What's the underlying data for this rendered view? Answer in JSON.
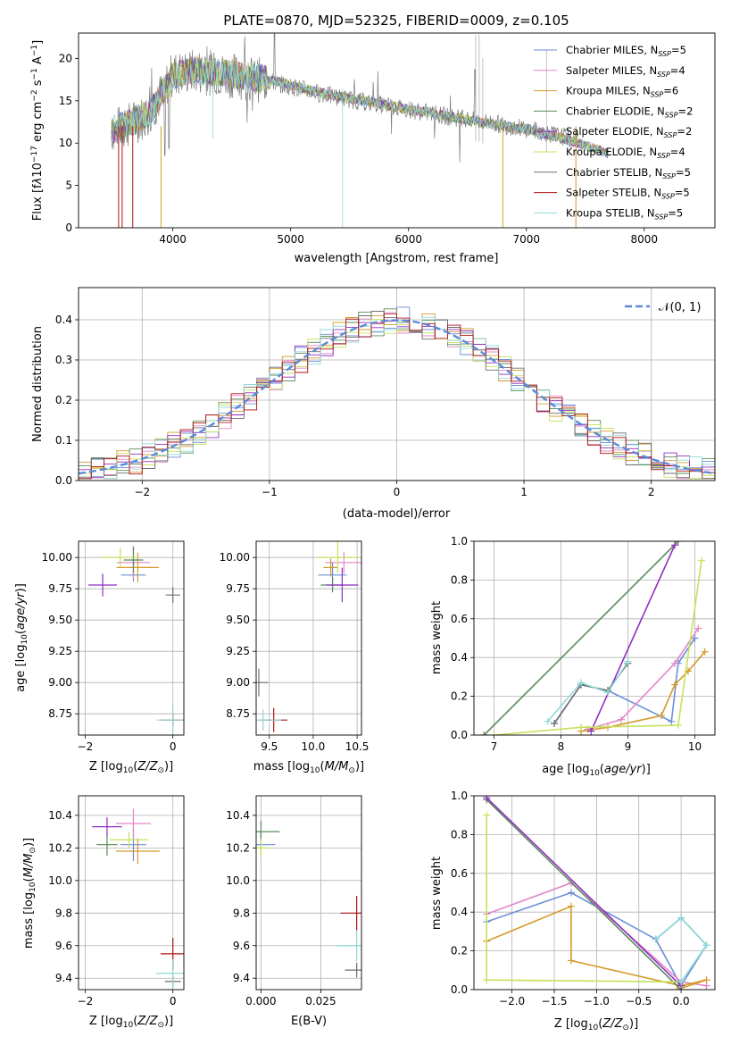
{
  "figure_title": "PLATE=0870, MJD=52325, FIBERID=0009, z=0.105",
  "colors": [
    "#6a8fd8",
    "#e086c8",
    "#d49a2a",
    "#5a8a5a",
    "#8e2fc0",
    "#c5e15a",
    "#6e6e6e",
    "#b01010",
    "#8fd8d8"
  ],
  "chart_data": [
    {
      "type": "line",
      "title": "PLATE=0870, MJD=52325, FIBERID=0009, z=0.105",
      "xlabel": "wavelength [Angstrom, rest frame]",
      "ylabel": "Flux [f_λ 10^-17 erg cm^-2 s^-1 A^-1]",
      "xlim": [
        3200,
        8600
      ],
      "ylim": [
        0,
        23
      ],
      "xticks": [
        "4000",
        "5000",
        "6000",
        "7000",
        "8000"
      ],
      "yticks": [
        "0",
        "5",
        "10",
        "15",
        "20"
      ],
      "legend_position": "upper-right",
      "legend": [
        {
          "name": "Chabrier MILES",
          "nssp": "5"
        },
        {
          "name": "Salpeter MILES",
          "nssp": "4"
        },
        {
          "name": "Kroupa MILES",
          "nssp": "6"
        },
        {
          "name": "Chabrier ELODIE",
          "nssp": "2"
        },
        {
          "name": "Salpeter ELODIE",
          "nssp": "2"
        },
        {
          "name": "Kroupa ELODIE",
          "nssp": "4"
        },
        {
          "name": "Chabrier STELIB",
          "nssp": "5"
        },
        {
          "name": "Salpeter STELIB",
          "nssp": "5"
        },
        {
          "name": "Kroupa STELIB",
          "nssp": "5"
        }
      ],
      "model_continuum": {
        "x": [
          3480,
          3600,
          3800,
          4000,
          4200,
          4500,
          4800,
          5000,
          5300,
          5600,
          6000,
          6300,
          6600,
          7000,
          7300,
          7700
        ],
        "y": [
          11.5,
          12.2,
          13.5,
          18.0,
          18.6,
          18.2,
          17.5,
          16.8,
          15.8,
          15.0,
          14.0,
          13.3,
          12.5,
          11.6,
          10.6,
          8.8
        ]
      },
      "observed_continuum": {
        "x": [
          3480,
          3600,
          3800,
          4000,
          4200,
          4500,
          4800,
          5000,
          5300,
          5600,
          6000,
          6300,
          6600,
          7000,
          7300,
          7450
        ],
        "y": [
          11.5,
          12.0,
          13.4,
          18.2,
          18.5,
          18.0,
          17.3,
          16.7,
          15.7,
          14.9,
          14.0,
          13.2,
          12.6,
          11.7,
          10.8,
          10.5
        ]
      }
    },
    {
      "type": "histogram",
      "xlabel": "(data-model)/error",
      "ylabel": "Normed distribution",
      "xlim": [
        -2.5,
        2.5
      ],
      "ylim": [
        0,
        0.48
      ],
      "grid": true,
      "xticks": [
        "−2",
        "−1",
        "0",
        "1",
        "2"
      ],
      "yticks": [
        "0.0",
        "0.1",
        "0.2",
        "0.3",
        "0.4"
      ],
      "legend": "𝒩(0, 1)",
      "legend_position": "upper-right",
      "reference_curve": "standard normal density N(0,1)"
    },
    {
      "type": "scatter",
      "xlabel": "Z [log10(Z/Z⊙)]",
      "ylabel": "age  [log10(age/yr)]",
      "xlim": [
        -2.15,
        0.25
      ],
      "ylim": [
        8.58,
        10.13
      ],
      "xticks": [
        "−2",
        "0"
      ],
      "yticks": [
        "8.75",
        "9.00",
        "9.25",
        "9.50",
        "9.75",
        "10.00"
      ],
      "grid": true,
      "points": [
        {
          "series": 0,
          "x": -0.9,
          "y": 9.86
        },
        {
          "series": 1,
          "x": -0.9,
          "y": 9.96
        },
        {
          "series": 2,
          "x": -0.8,
          "y": 9.92
        },
        {
          "series": 3,
          "x": -0.9,
          "y": 9.98
        },
        {
          "series": 4,
          "x": -1.6,
          "y": 9.78
        },
        {
          "series": 5,
          "x": -1.2,
          "y": 10.0
        },
        {
          "series": 6,
          "x": 0.0,
          "y": 9.7
        },
        {
          "series": 7,
          "x": 0.0,
          "y": 8.7
        },
        {
          "series": 8,
          "x": 0.0,
          "y": 8.7
        }
      ]
    },
    {
      "type": "scatter",
      "xlabel": "mass [log10(M/M⊙)]",
      "xlim": [
        9.35,
        10.55
      ],
      "ylim": [
        8.58,
        10.13
      ],
      "xticks": [
        "9.5",
        "10.0",
        "10.5"
      ],
      "yticks": [
        "8.75",
        "9.00",
        "9.25",
        "9.50",
        "9.75",
        "10.00"
      ],
      "grid": true,
      "points": [
        {
          "series": 0,
          "x": 10.22,
          "y": 9.86
        },
        {
          "series": 1,
          "x": 10.35,
          "y": 9.96
        },
        {
          "series": 2,
          "x": 10.2,
          "y": 9.92
        },
        {
          "series": 3,
          "x": 10.22,
          "y": 9.78
        },
        {
          "series": 4,
          "x": 10.33,
          "y": 9.78
        },
        {
          "series": 5,
          "x": 10.28,
          "y": 10.0
        },
        {
          "series": 6,
          "x": 9.38,
          "y": 9.0
        },
        {
          "series": 7,
          "x": 9.55,
          "y": 8.7
        },
        {
          "series": 8,
          "x": 9.43,
          "y": 8.7
        }
      ]
    },
    {
      "type": "line",
      "xlabel": "age  [log10(age/yr)]",
      "ylabel": "mass weight",
      "xlim": [
        6.7,
        10.3
      ],
      "ylim": [
        0,
        1.0
      ],
      "xticks": [
        "7",
        "8",
        "9",
        "10"
      ],
      "yticks": [
        "0.0",
        "0.2",
        "0.4",
        "0.6",
        "0.8",
        "1.0"
      ],
      "grid": true,
      "series": [
        {
          "x": [
            7.9,
            8.3,
            8.7,
            9.65,
            9.75,
            10.0
          ],
          "y": [
            0.06,
            0.26,
            0.23,
            0.07,
            0.37,
            0.5
          ],
          "color_index": 0
        },
        {
          "x": [
            8.4,
            8.9,
            9.7,
            10.05
          ],
          "y": [
            0.03,
            0.08,
            0.37,
            0.55
          ],
          "color_index": 1
        },
        {
          "x": [
            8.3,
            8.7,
            9.5,
            9.7,
            9.9,
            10.15
          ],
          "y": [
            0.02,
            0.04,
            0.1,
            0.26,
            0.33,
            0.43
          ],
          "color_index": 2
        },
        {
          "x": [
            6.85,
            9.75
          ],
          "y": [
            0.0,
            1.0
          ],
          "color_index": 3
        },
        {
          "x": [
            8.45,
            9.7
          ],
          "y": [
            0.02,
            0.98
          ],
          "color_index": 4
        },
        {
          "x": [
            7.0,
            8.3,
            9.75,
            10.1
          ],
          "y": [
            0.0,
            0.04,
            0.05,
            0.9
          ],
          "color_index": 5
        },
        {
          "x": [
            7.9,
            8.3,
            8.7,
            9.0
          ],
          "y": [
            0.06,
            0.26,
            0.23,
            0.37
          ],
          "color_index": 6
        },
        {
          "x": [
            7.8,
            8.3,
            8.7,
            9.0
          ],
          "y": [
            0.07,
            0.27,
            0.22,
            0.38
          ],
          "color_index": 8
        }
      ]
    },
    {
      "type": "scatter",
      "xlabel": "Z [log10(Z/Z⊙)]",
      "ylabel": "mass [log10(M/M⊙)]",
      "xlim": [
        -2.15,
        0.25
      ],
      "ylim": [
        9.33,
        10.52
      ],
      "xticks": [
        "−2",
        "0"
      ],
      "yticks": [
        "9.4",
        "9.6",
        "9.8",
        "10.0",
        "10.2",
        "10.4"
      ],
      "grid": true,
      "points": [
        {
          "series": 0,
          "x": -0.9,
          "y": 10.22
        },
        {
          "series": 1,
          "x": -0.9,
          "y": 10.35
        },
        {
          "series": 2,
          "x": -0.8,
          "y": 10.18
        },
        {
          "series": 3,
          "x": -1.5,
          "y": 10.22
        },
        {
          "series": 4,
          "x": -1.5,
          "y": 10.33
        },
        {
          "series": 5,
          "x": -1.0,
          "y": 10.25
        },
        {
          "series": 6,
          "x": 0.0,
          "y": 9.38
        },
        {
          "series": 7,
          "x": 0.0,
          "y": 9.55
        },
        {
          "series": 8,
          "x": 0.0,
          "y": 9.43
        }
      ]
    },
    {
      "type": "scatter",
      "xlabel": "E(B-V)",
      "xlim": [
        -0.002,
        0.042
      ],
      "ylim": [
        9.33,
        10.52
      ],
      "xticks": [
        "0.000",
        "0.025"
      ],
      "yticks": [
        "9.4",
        "9.6",
        "9.8",
        "10.0",
        "10.2",
        "10.4"
      ],
      "grid": true,
      "points": [
        {
          "series": 0,
          "x": 0.0,
          "y": 10.22
        },
        {
          "series": 3,
          "x": 0.0,
          "y": 10.3
        },
        {
          "series": 5,
          "x": 0.0,
          "y": 10.2
        },
        {
          "series": 6,
          "x": 0.04,
          "y": 9.45
        },
        {
          "series": 7,
          "x": 0.04,
          "y": 9.8
        },
        {
          "series": 8,
          "x": 0.04,
          "y": 9.6
        }
      ]
    },
    {
      "type": "line",
      "xlabel": "Z [log10(Z/Z⊙)]",
      "ylabel": "mass weight",
      "xlim": [
        -2.45,
        0.4
      ],
      "ylim": [
        0,
        1.0
      ],
      "xticks": [
        "−2.0",
        "−1.5",
        "−1.0",
        "−0.5",
        "0.0"
      ],
      "yticks": [
        "0.0",
        "0.2",
        "0.4",
        "0.6",
        "0.8",
        "1.0"
      ],
      "grid": true,
      "series": [
        {
          "x": [
            -2.3,
            -1.3,
            -0.3,
            0.0,
            0.3,
            0.0,
            -0.3
          ],
          "y": [
            0.35,
            0.5,
            0.26,
            0.02,
            0.23,
            0.37,
            0.26
          ],
          "color_index": 0
        },
        {
          "x": [
            -2.3,
            -1.3,
            0.0,
            0.3
          ],
          "y": [
            0.39,
            0.55,
            0.04,
            0.02
          ],
          "color_index": 1
        },
        {
          "x": [
            -2.3,
            -1.3,
            -1.3,
            0.0,
            0.3,
            -0.05
          ],
          "y": [
            0.25,
            0.43,
            0.15,
            0.02,
            0.05,
            0.0
          ],
          "color_index": 2
        },
        {
          "x": [
            -2.3,
            0.0
          ],
          "y": [
            0.98,
            0.0
          ],
          "color_index": 3
        },
        {
          "x": [
            -2.3,
            0.0
          ],
          "y": [
            0.99,
            0.02
          ],
          "color_index": 4
        },
        {
          "x": [
            -2.3,
            -2.3,
            0.0
          ],
          "y": [
            0.9,
            0.05,
            0.04
          ],
          "color_index": 5
        },
        {
          "x": [
            -0.3,
            0.0,
            0.3,
            0.0
          ],
          "y": [
            0.26,
            0.37,
            0.23,
            0.04
          ],
          "color_index": 8
        }
      ]
    }
  ]
}
